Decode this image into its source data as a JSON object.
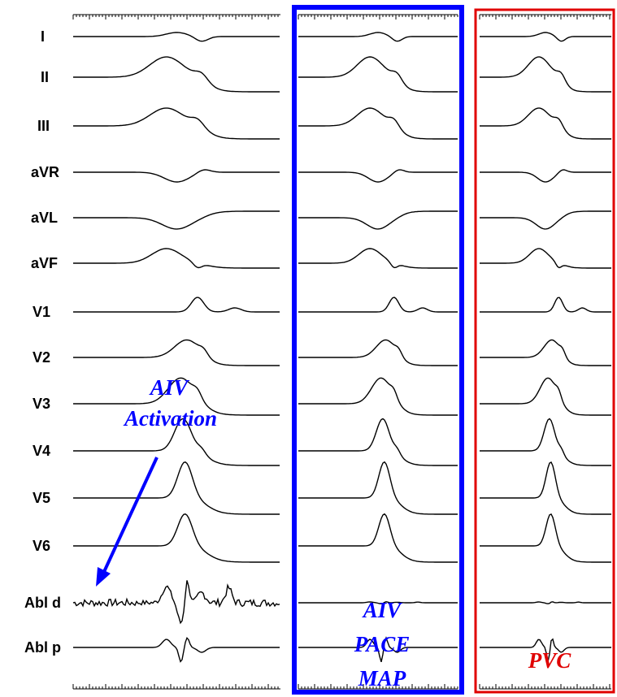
{
  "leads": [
    "I",
    "II",
    "III",
    "aVR",
    "aVL",
    "aVF",
    "V1",
    "V2",
    "V3",
    "V4",
    "V5",
    "V6",
    "Abl d",
    "Abl p"
  ],
  "annotations": {
    "activation": [
      "AIV",
      "Activation"
    ],
    "pace_map": [
      "AIV",
      "PACE",
      "MAP"
    ],
    "pvc": "PVC"
  }
}
